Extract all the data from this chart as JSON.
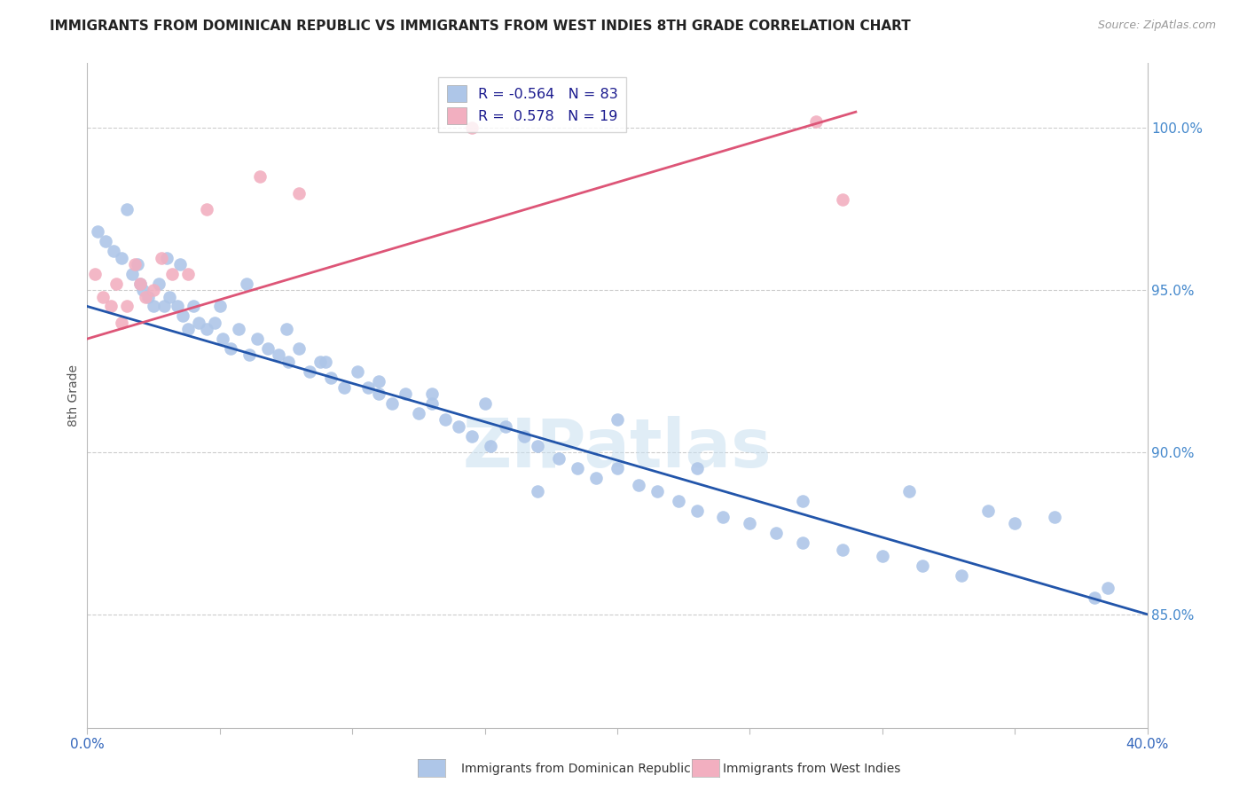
{
  "title": "IMMIGRANTS FROM DOMINICAN REPUBLIC VS IMMIGRANTS FROM WEST INDIES 8TH GRADE CORRELATION CHART",
  "source": "Source: ZipAtlas.com",
  "ylabel": "8th Grade",
  "y_ticks": [
    85.0,
    90.0,
    95.0,
    100.0
  ],
  "x_min": 0.0,
  "x_max": 40.0,
  "y_min": 81.5,
  "y_max": 102.0,
  "legend_blue_r": "-0.564",
  "legend_blue_n": "83",
  "legend_pink_r": "0.578",
  "legend_pink_n": "19",
  "legend_label_blue": "Immigrants from Dominican Republic",
  "legend_label_pink": "Immigrants from West Indies",
  "blue_color": "#aec6e8",
  "pink_color": "#f2afc0",
  "blue_line_color": "#2255aa",
  "pink_line_color": "#dd5577",
  "watermark": "ZIPatlas",
  "blue_x": [
    0.4,
    0.7,
    1.0,
    1.3,
    1.5,
    1.7,
    1.9,
    2.1,
    2.3,
    2.5,
    2.7,
    2.9,
    3.1,
    3.4,
    3.6,
    3.8,
    4.0,
    4.2,
    4.5,
    4.8,
    5.1,
    5.4,
    5.7,
    6.1,
    6.4,
    6.8,
    7.2,
    7.6,
    8.0,
    8.4,
    8.8,
    9.2,
    9.7,
    10.2,
    10.6,
    11.0,
    11.5,
    12.0,
    12.5,
    13.0,
    13.5,
    14.0,
    14.5,
    15.2,
    15.8,
    16.5,
    17.0,
    17.8,
    18.5,
    19.2,
    20.0,
    20.8,
    21.5,
    22.3,
    23.0,
    24.0,
    25.0,
    26.0,
    27.0,
    28.5,
    30.0,
    31.5,
    33.0,
    35.0,
    36.5,
    38.0,
    2.0,
    3.0,
    3.5,
    5.0,
    6.0,
    7.5,
    9.0,
    11.0,
    13.0,
    15.0,
    17.0,
    20.0,
    23.0,
    27.0,
    31.0,
    34.0,
    38.5
  ],
  "blue_y": [
    96.8,
    96.5,
    96.2,
    96.0,
    97.5,
    95.5,
    95.8,
    95.0,
    94.8,
    94.5,
    95.2,
    94.5,
    94.8,
    94.5,
    94.2,
    93.8,
    94.5,
    94.0,
    93.8,
    94.0,
    93.5,
    93.2,
    93.8,
    93.0,
    93.5,
    93.2,
    93.0,
    92.8,
    93.2,
    92.5,
    92.8,
    92.3,
    92.0,
    92.5,
    92.0,
    91.8,
    91.5,
    91.8,
    91.2,
    91.5,
    91.0,
    90.8,
    90.5,
    90.2,
    90.8,
    90.5,
    90.2,
    89.8,
    89.5,
    89.2,
    89.5,
    89.0,
    88.8,
    88.5,
    88.2,
    88.0,
    87.8,
    87.5,
    87.2,
    87.0,
    86.8,
    86.5,
    86.2,
    87.8,
    88.0,
    85.5,
    95.2,
    96.0,
    95.8,
    94.5,
    95.2,
    93.8,
    92.8,
    92.2,
    91.8,
    91.5,
    88.8,
    91.0,
    89.5,
    88.5,
    88.8,
    88.2,
    85.8
  ],
  "pink_x": [
    0.3,
    0.6,
    0.9,
    1.1,
    1.3,
    1.5,
    1.8,
    2.0,
    2.2,
    2.5,
    2.8,
    3.2,
    3.8,
    4.5,
    6.5,
    8.0,
    14.5,
    27.5,
    28.5
  ],
  "pink_y": [
    95.5,
    94.8,
    94.5,
    95.2,
    94.0,
    94.5,
    95.8,
    95.2,
    94.8,
    95.0,
    96.0,
    95.5,
    95.5,
    97.5,
    98.5,
    98.0,
    100.0,
    100.2,
    97.8
  ],
  "blue_line_x": [
    0.0,
    40.0
  ],
  "blue_line_y": [
    94.5,
    85.0
  ],
  "pink_line_x": [
    0.0,
    29.0
  ],
  "pink_line_y": [
    93.5,
    100.5
  ]
}
